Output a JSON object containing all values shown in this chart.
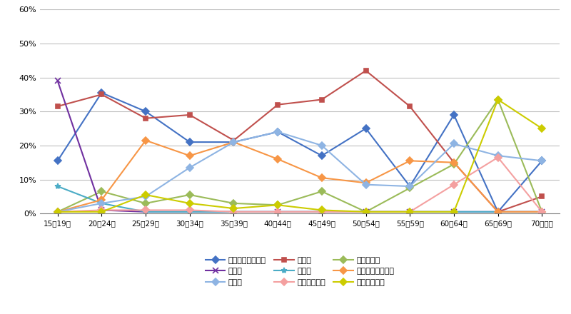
{
  "categories": [
    "15～19歳",
    "20～24歳",
    "25～29歳",
    "30～34歳",
    "35～39歳",
    "40～44歳",
    "45～49歳",
    "50～54歳",
    "55～59歳",
    "60～64歳",
    "65～69歳",
    "70歳以上"
  ],
  "series": [
    {
      "label": "就職・転職・転業",
      "color": "#4472C4",
      "marker": "D",
      "markersize": 5,
      "values": [
        15.5,
        35.5,
        30.0,
        21.0,
        21.0,
        24.0,
        17.0,
        25.0,
        8.0,
        29.0,
        0.5,
        15.5
      ]
    },
    {
      "label": "転　動",
      "color": "#C0504D",
      "marker": "s",
      "markersize": 5,
      "values": [
        31.5,
        35.0,
        28.0,
        29.0,
        21.5,
        32.0,
        33.5,
        42.0,
        31.5,
        15.0,
        0.5,
        5.0
      ]
    },
    {
      "label": "退職・廃業",
      "color": "#9BBB59",
      "marker": "D",
      "markersize": 5,
      "values": [
        0.5,
        6.5,
        3.0,
        5.5,
        3.0,
        2.5,
        6.5,
        0.5,
        7.5,
        14.5,
        33.5,
        0.5
      ]
    },
    {
      "label": "就　学",
      "color": "#7030A0",
      "marker": "x",
      "markersize": 6,
      "values": [
        39.0,
        1.0,
        0.5,
        0.5,
        0.5,
        0.5,
        0.5,
        0.5,
        0.5,
        0.5,
        0.5,
        0.5
      ]
    },
    {
      "label": "卒　業",
      "color": "#4BACC6",
      "marker": "*",
      "markersize": 6,
      "values": [
        8.0,
        3.0,
        0.5,
        0.5,
        0.5,
        0.5,
        0.5,
        0.5,
        0.5,
        0.5,
        0.5,
        0.5
      ]
    },
    {
      "label": "結婚・離婚・縁組",
      "color": "#F79646",
      "marker": "D",
      "markersize": 5,
      "values": [
        0.5,
        4.0,
        21.5,
        17.0,
        21.0,
        16.0,
        10.5,
        9.0,
        15.5,
        15.0,
        0.5,
        0.5
      ]
    },
    {
      "label": "住　宅",
      "color": "#8EB4E3",
      "marker": "D",
      "markersize": 5,
      "values": [
        0.5,
        3.0,
        5.0,
        13.5,
        21.0,
        24.0,
        20.0,
        8.5,
        8.0,
        20.5,
        17.0,
        15.5
      ]
    },
    {
      "label": "交通の利便性",
      "color": "#F4A0A0",
      "marker": "D",
      "markersize": 5,
      "values": [
        0.5,
        1.0,
        1.0,
        1.0,
        0.5,
        0.5,
        0.5,
        0.5,
        0.5,
        8.5,
        16.5,
        0.5
      ]
    },
    {
      "label": "生活の利便性",
      "color": "#CCCC00",
      "marker": "D",
      "markersize": 5,
      "values": [
        0.5,
        0.5,
        5.5,
        3.0,
        1.5,
        2.5,
        1.0,
        0.5,
        0.5,
        0.5,
        33.5,
        25.0
      ]
    }
  ],
  "ylim": [
    0,
    60
  ],
  "yticks": [
    0,
    10,
    20,
    30,
    40,
    50,
    60
  ],
  "ytick_labels": [
    "0%",
    "10%",
    "20%",
    "30%",
    "40%",
    "50%",
    "60%"
  ],
  "background_color": "#FFFFFF",
  "grid_color": "#C0C0C0",
  "figsize": [
    8.0,
    4.4
  ],
  "dpi": 100
}
